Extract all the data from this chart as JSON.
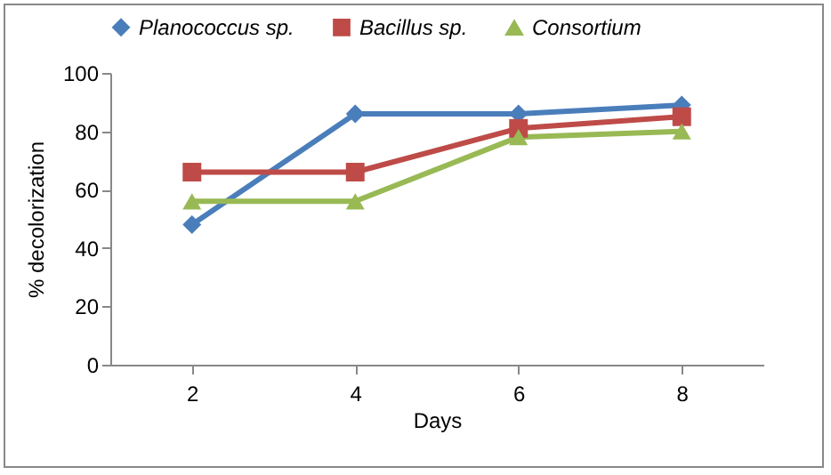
{
  "chart_data": {
    "type": "line",
    "xlabel": "Days",
    "ylabel": "% decolorization",
    "categories": [
      "2",
      "4",
      "6",
      "8"
    ],
    "series": [
      {
        "name": "Planococcus sp.",
        "color": "#4a7ebb",
        "marker": "diamond",
        "values": [
          48,
          86,
          86,
          89
        ]
      },
      {
        "name": "Bacillus sp.",
        "color": "#be4b48",
        "marker": "square",
        "values": [
          66,
          66,
          81,
          85
        ]
      },
      {
        "name": "Consortium",
        "color": "#98b954",
        "marker": "triangle",
        "values": [
          56,
          56,
          78,
          80
        ]
      }
    ],
    "ylim": [
      0,
      100
    ],
    "yticks": [
      0,
      20,
      40,
      60,
      80,
      100
    ],
    "grid": false,
    "legend": "top"
  }
}
